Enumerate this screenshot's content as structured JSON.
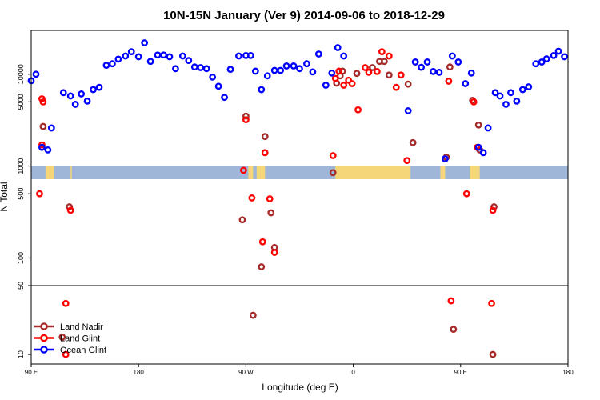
{
  "chart_data": {
    "type": "scatter",
    "title": "10N-15N January (Ver 9)   2014-09-06 to 2018-12-29",
    "xlabel": "Longitude (deg E)",
    "ylabel": "N Total",
    "x_ticks": [
      {
        "value": 90,
        "label": "90 E"
      },
      {
        "value": 180,
        "label": "180"
      },
      {
        "value": 270,
        "label": "90 W"
      },
      {
        "value": 360,
        "label": "0"
      },
      {
        "value": 450,
        "label": "90 E"
      },
      {
        "value": 540,
        "label": "180"
      }
    ],
    "xlim": [
      90,
      540
    ],
    "y_scale": "log",
    "upper_panel": {
      "ylim": [
        50,
        30000
      ],
      "y_ticks": [
        {
          "value": 50,
          "label": "50"
        },
        {
          "value": 100,
          "label": "100"
        },
        {
          "value": 500,
          "label": "500"
        },
        {
          "value": 1000,
          "label": "1000"
        },
        {
          "value": 5000,
          "label": "5000"
        },
        {
          "value": 10000,
          "label": "10000"
        }
      ]
    },
    "lower_panel": {
      "ylim": [
        8,
        50
      ],
      "y_ticks": [
        {
          "value": 10,
          "label": "10"
        },
        {
          "value": 50,
          "label": "50"
        }
      ]
    },
    "land_band": {
      "ymin": 720,
      "ymax": 1000,
      "color": "#9fb6d8"
    },
    "land_mask_color": "#f5d77a",
    "land_mask_regions": [
      [
        102,
        109
      ],
      [
        123,
        124
      ],
      [
        272,
        276
      ],
      [
        279,
        286
      ],
      [
        345,
        408
      ],
      [
        433,
        437
      ],
      [
        458,
        466
      ]
    ],
    "legend_position": "bottom-left",
    "series": [
      {
        "name": "Land Nadir",
        "color": "#a52a2a",
        "points": [
          [
            100,
            2700
          ],
          [
            116,
            15
          ],
          [
            122,
            360
          ],
          [
            270,
            3500
          ],
          [
            267,
            260
          ],
          [
            276,
            25
          ],
          [
            283,
            80
          ],
          [
            286,
            2100
          ],
          [
            291,
            310
          ],
          [
            294,
            130
          ],
          [
            343,
            850
          ],
          [
            346,
            8000
          ],
          [
            349,
            9600
          ],
          [
            351,
            10800
          ],
          [
            363,
            10200
          ],
          [
            376,
            11800
          ],
          [
            382,
            13800
          ],
          [
            386,
            13800
          ],
          [
            390,
            9800
          ],
          [
            406,
            7800
          ],
          [
            410,
            1800
          ],
          [
            438,
            1250
          ],
          [
            441,
            12000
          ],
          [
            444,
            18
          ],
          [
            460,
            5200
          ],
          [
            466,
            1500
          ],
          [
            465,
            2800
          ],
          [
            477,
            10
          ],
          [
            478,
            360
          ]
        ]
      },
      {
        "name": "Land Glint",
        "color": "#ff0000",
        "points": [
          [
            100,
            5000
          ],
          [
            99,
            5400
          ],
          [
            99,
            1700
          ],
          [
            97,
            500
          ],
          [
            119,
            10
          ],
          [
            119,
            33
          ],
          [
            123,
            330
          ],
          [
            268,
            900
          ],
          [
            270,
            3200
          ],
          [
            275,
            450
          ],
          [
            284,
            150
          ],
          [
            286,
            1400
          ],
          [
            290,
            440
          ],
          [
            294,
            115
          ],
          [
            343,
            1300
          ],
          [
            345,
            9000
          ],
          [
            348,
            10800
          ],
          [
            352,
            7600
          ],
          [
            356,
            8600
          ],
          [
            359,
            7900
          ],
          [
            364,
            4100
          ],
          [
            370,
            11800
          ],
          [
            373,
            10500
          ],
          [
            380,
            10700
          ],
          [
            384,
            17600
          ],
          [
            390,
            15800
          ],
          [
            396,
            7200
          ],
          [
            400,
            9800
          ],
          [
            405,
            1150
          ],
          [
            440,
            8400
          ],
          [
            442,
            35
          ],
          [
            455,
            500
          ],
          [
            461,
            5000
          ],
          [
            464,
            1600
          ],
          [
            476,
            33
          ],
          [
            477,
            330
          ]
        ]
      },
      {
        "name": "Ocean Glint",
        "color": "#0000ff",
        "points": [
          [
            90,
            8500
          ],
          [
            94,
            10000
          ],
          [
            99,
            1600
          ],
          [
            104,
            1500
          ],
          [
            107,
            2600
          ],
          [
            117,
            6300
          ],
          [
            123,
            5800
          ],
          [
            127,
            4700
          ],
          [
            132,
            6100
          ],
          [
            137,
            5100
          ],
          [
            142,
            6800
          ],
          [
            147,
            7200
          ],
          [
            153,
            12500
          ],
          [
            158,
            13000
          ],
          [
            163,
            14600
          ],
          [
            169,
            15800
          ],
          [
            174,
            17600
          ],
          [
            180,
            15500
          ],
          [
            185,
            22000
          ],
          [
            190,
            13800
          ],
          [
            196,
            16200
          ],
          [
            201,
            16200
          ],
          [
            206,
            15500
          ],
          [
            211,
            11500
          ],
          [
            217,
            15800
          ],
          [
            222,
            14100
          ],
          [
            227,
            12000
          ],
          [
            232,
            11800
          ],
          [
            237,
            11500
          ],
          [
            242,
            9300
          ],
          [
            247,
            7400
          ],
          [
            252,
            5600
          ],
          [
            257,
            11300
          ],
          [
            264,
            15800
          ],
          [
            270,
            16000
          ],
          [
            274,
            16000
          ],
          [
            278,
            10800
          ],
          [
            283,
            6800
          ],
          [
            288,
            9600
          ],
          [
            294,
            11000
          ],
          [
            299,
            11000
          ],
          [
            304,
            12300
          ],
          [
            310,
            12300
          ],
          [
            315,
            11500
          ],
          [
            321,
            13000
          ],
          [
            326,
            10600
          ],
          [
            331,
            16600
          ],
          [
            337,
            7600
          ],
          [
            342,
            10300
          ],
          [
            347,
            19500
          ],
          [
            352,
            15800
          ],
          [
            406,
            4000
          ],
          [
            412,
            13600
          ],
          [
            417,
            11900
          ],
          [
            422,
            13600
          ],
          [
            427,
            10700
          ],
          [
            432,
            10500
          ],
          [
            437,
            1200
          ],
          [
            443,
            15800
          ],
          [
            448,
            13600
          ],
          [
            454,
            7900
          ],
          [
            459,
            10300
          ],
          [
            465,
            1600
          ],
          [
            469,
            1400
          ],
          [
            473,
            2600
          ],
          [
            479,
            6300
          ],
          [
            483,
            5800
          ],
          [
            488,
            4700
          ],
          [
            492,
            6300
          ],
          [
            497,
            5100
          ],
          [
            502,
            6800
          ],
          [
            507,
            7300
          ],
          [
            513,
            13000
          ],
          [
            518,
            13600
          ],
          [
            522,
            14700
          ],
          [
            528,
            16000
          ],
          [
            532,
            17800
          ],
          [
            537,
            15500
          ]
        ]
      }
    ]
  }
}
